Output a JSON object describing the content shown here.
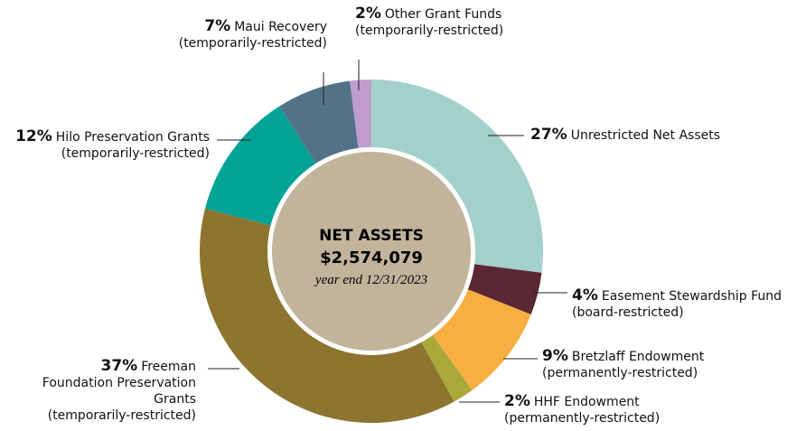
{
  "chart_data": {
    "type": "donut",
    "center_label": {
      "title": "NET ASSETS",
      "amount": "$2,574,079",
      "note": "year end 12/31/2023"
    },
    "categories": [
      "Unrestricted Net Assets",
      "Easement Stewardship Fund",
      "Bretzlaff Endowment",
      "HHF Endowment",
      "Freeman Foundation Preservation Grants",
      "Hilo Preservation Grants",
      "Maui Recovery",
      "Other Grant Funds"
    ],
    "subcategories": [
      null,
      "(board-restricted)",
      "(permanently-restricted)",
      "(permanently-restricted)",
      "(temporarily-restricted)",
      "(temporarily-restricted)",
      "(temporarily-restricted)",
      "(temporarily-restricted)"
    ],
    "values": [
      27,
      4,
      9,
      2,
      37,
      12,
      7,
      2
    ],
    "value_labels": [
      "27%",
      "4%",
      "9%",
      "2%",
      "37%",
      "12%",
      "7%",
      "2%"
    ],
    "colors": [
      "#a3d0cb",
      "#5a2832",
      "#f9ae42",
      "#a9a93a",
      "#8d7530",
      "#00a396",
      "#527387",
      "#c09ccb"
    ]
  }
}
